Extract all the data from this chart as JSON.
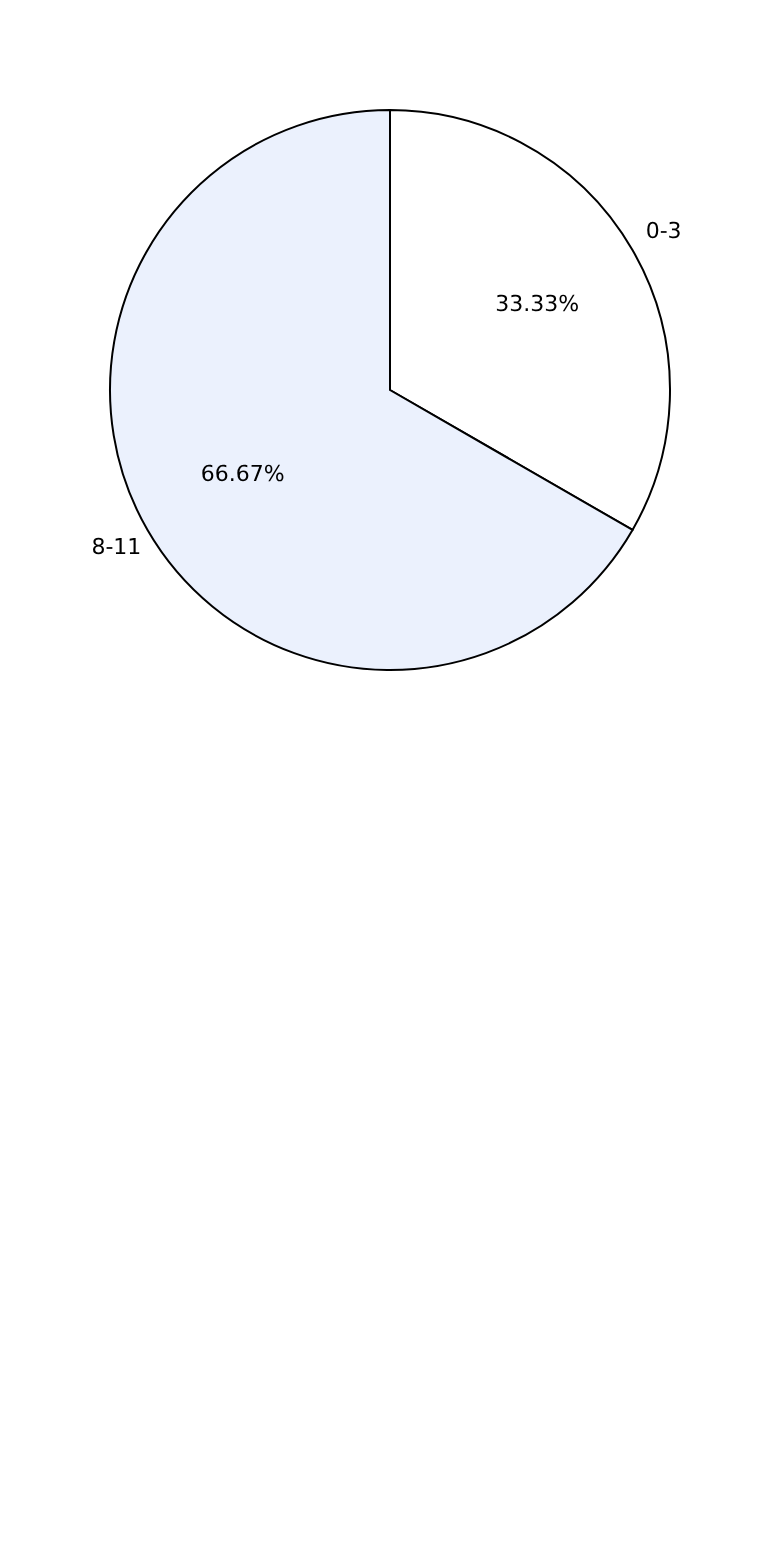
{
  "chart_data": {
    "type": "pie",
    "categories": [
      "0-3",
      "8-11"
    ],
    "values": [
      33.33,
      66.67
    ],
    "colors": [
      "#ffffff",
      "#ebf1fd"
    ],
    "value_labels": [
      "33.33%",
      "66.67%"
    ],
    "legend": false
  }
}
